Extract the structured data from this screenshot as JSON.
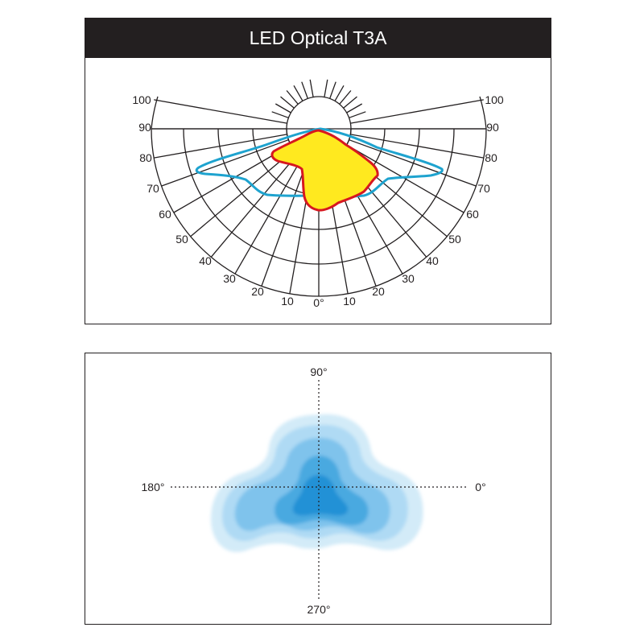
{
  "title": "LED Optical T3A",
  "polar_chart": {
    "left_labels": [
      "100",
      "90",
      "80",
      "70",
      "60",
      "50",
      "40",
      "30",
      "20",
      "10"
    ],
    "right_labels": [
      "100",
      "90",
      "80",
      "70",
      "60",
      "50",
      "40",
      "30",
      "20",
      "10"
    ],
    "center_label": "0°"
  },
  "iso_chart": {
    "top_label": "90°",
    "left_label": "180°",
    "right_label": "0°",
    "bottom_label": "270°"
  },
  "colors": {
    "cyan_curve": "#1ea3cf",
    "yellow_fill": "#ffe91f",
    "red_curve": "#d7181f",
    "iso_levels": [
      "#d3ebf8",
      "#afdaf4",
      "#7fc3ec",
      "#4aa9e0",
      "#2391d6"
    ]
  }
}
